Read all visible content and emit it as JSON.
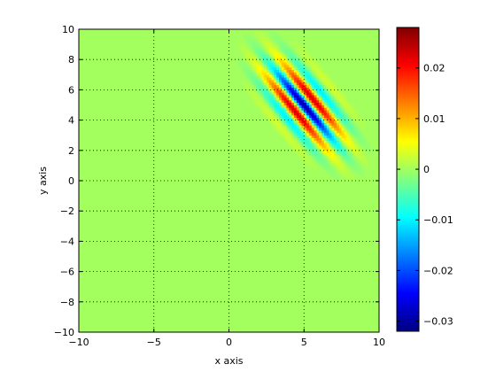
{
  "chart_data": {
    "type": "heatmap",
    "title": "",
    "xlabel": "x axis",
    "ylabel": "y axis",
    "xlim": [
      -10,
      10
    ],
    "ylim": [
      -10,
      10
    ],
    "xticks": [
      -10,
      -5,
      0,
      5,
      10
    ],
    "xtick_labels": [
      "−10",
      "−5",
      "0",
      "5",
      "10"
    ],
    "yticks": [
      -10,
      -8,
      -6,
      -4,
      -2,
      0,
      2,
      4,
      6,
      8,
      10
    ],
    "ytick_labels": [
      "−10",
      "−8",
      "−6",
      "−4",
      "−2",
      "0",
      "2",
      "4",
      "6",
      "8",
      "10"
    ],
    "grid": true,
    "colormap": "jet",
    "clim": [
      -0.032,
      0.028
    ],
    "colorbar_ticks": [
      0.02,
      0.01,
      0,
      -0.01,
      -0.02,
      -0.03
    ],
    "colorbar_tick_labels": [
      "0.02",
      "0.01",
      "0",
      "−0.01",
      "−0.02",
      "−0.03"
    ],
    "background_value": 0,
    "pattern": {
      "description_kind": "gabor",
      "center": [
        5,
        5
      ],
      "sigma_along": 2.2,
      "sigma_across": 1.0,
      "wavelength": 1.5,
      "orientation_deg": -50,
      "amplitude": 0.03
    }
  }
}
